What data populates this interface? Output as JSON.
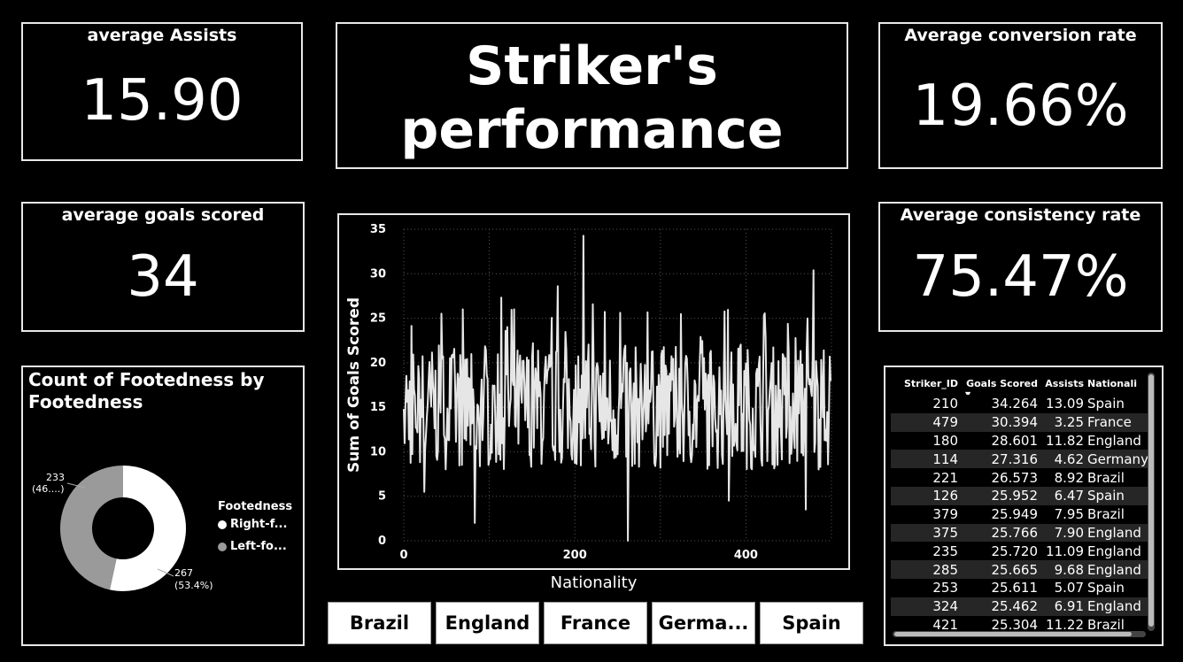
{
  "cards": {
    "assists": {
      "title": "average Assists",
      "value": "15.90"
    },
    "goals": {
      "title": "average goals scored",
      "value": "34"
    },
    "conversion": {
      "title": "Average conversion rate",
      "value": "19.66%"
    },
    "consistency": {
      "title": "Average consistency rate",
      "value": "75.47%"
    }
  },
  "title": {
    "line1": "Striker's",
    "line2": "performance"
  },
  "donut": {
    "title": "Count of Footedness by Footedness",
    "legend_title": "Footedness",
    "colors": {
      "right": "#ffffff",
      "left": "#9a9a9a"
    }
  },
  "chart_data": [
    {
      "type": "line",
      "xlabel": "Nationality",
      "ylabel": "Sum of Goals Scored",
      "xlim": [
        0,
        500
      ],
      "ylim": [
        0,
        35
      ],
      "xticks": [
        0,
        200,
        400
      ],
      "yticks": [
        0,
        5,
        10,
        15,
        20,
        25,
        30,
        35
      ],
      "grid": true,
      "line_color": "#e6e6e6",
      "x_count": 500,
      "peaks": [
        {
          "x": 210,
          "y": 34.264
        },
        {
          "x": 479,
          "y": 30.394
        },
        {
          "x": 180,
          "y": 28.601
        },
        {
          "x": 114,
          "y": 27.316
        },
        {
          "x": 221,
          "y": 26.573
        },
        {
          "x": 126,
          "y": 25.952
        },
        {
          "x": 379,
          "y": 25.949
        },
        {
          "x": 375,
          "y": 25.766
        },
        {
          "x": 235,
          "y": 25.72
        },
        {
          "x": 285,
          "y": 25.665
        },
        {
          "x": 253,
          "y": 25.611
        },
        {
          "x": 324,
          "y": 25.462
        },
        {
          "x": 421,
          "y": 25.304
        }
      ],
      "troughs": [
        {
          "x": 83,
          "y": 2
        },
        {
          "x": 262,
          "y": 0
        },
        {
          "x": 470,
          "y": 3.5
        },
        {
          "x": 24,
          "y": 5.5
        },
        {
          "x": 380,
          "y": 4.5
        }
      ]
    },
    {
      "type": "pie",
      "title": "Count of Footedness by Footedness",
      "legend_title": "Footedness",
      "slices": [
        {
          "label": "Right-f...",
          "value": 267,
          "text": "267",
          "pct": "(53.4%)"
        },
        {
          "label": "Left-fo...",
          "value": 233,
          "text": "233",
          "pct": "(46....)"
        }
      ]
    }
  ],
  "slicers": [
    "Brazil",
    "England",
    "France",
    "Germa...",
    "Spain"
  ],
  "table": {
    "headers": [
      "Striker_ID",
      "Goals Scored",
      "Assists",
      "Nationali"
    ],
    "rows": [
      [
        "210",
        "34.264",
        "13.09",
        "Spain"
      ],
      [
        "479",
        "30.394",
        "3.25",
        "France"
      ],
      [
        "180",
        "28.601",
        "11.82",
        "England"
      ],
      [
        "114",
        "27.316",
        "4.62",
        "Germany"
      ],
      [
        "221",
        "26.573",
        "8.92",
        "Brazil"
      ],
      [
        "126",
        "25.952",
        "6.47",
        "Spain"
      ],
      [
        "379",
        "25.949",
        "7.95",
        "Brazil"
      ],
      [
        "375",
        "25.766",
        "7.90",
        "England"
      ],
      [
        "235",
        "25.720",
        "11.09",
        "England"
      ],
      [
        "285",
        "25.665",
        "9.68",
        "England"
      ],
      [
        "253",
        "25.611",
        "5.07",
        "Spain"
      ],
      [
        "324",
        "25.462",
        "6.91",
        "England"
      ],
      [
        "421",
        "25.304",
        "11.22",
        "Brazil"
      ]
    ]
  }
}
